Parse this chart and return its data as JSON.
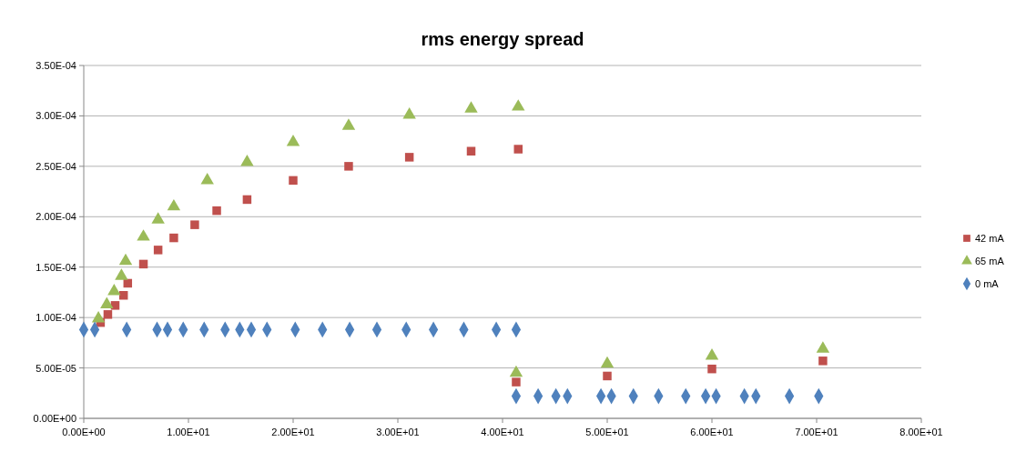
{
  "chart_data": {
    "type": "scatter",
    "title": "rms energy spread",
    "xlim": [
      0,
      80
    ],
    "ylim": [
      0,
      0.00035
    ],
    "xticks": [
      {
        "value": 0,
        "label": "0.00E+00"
      },
      {
        "value": 10,
        "label": "1.00E+01"
      },
      {
        "value": 20,
        "label": "2.00E+01"
      },
      {
        "value": 30,
        "label": "3.00E+01"
      },
      {
        "value": 40,
        "label": "4.00E+01"
      },
      {
        "value": 50,
        "label": "5.00E+01"
      },
      {
        "value": 60,
        "label": "6.00E+01"
      },
      {
        "value": 70,
        "label": "7.00E+01"
      },
      {
        "value": 80,
        "label": "8.00E+01"
      }
    ],
    "yticks": [
      {
        "value": 0,
        "label": "0.00E+00"
      },
      {
        "value": 5e-05,
        "label": "5.00E-05"
      },
      {
        "value": 0.0001,
        "label": "1.00E-04"
      },
      {
        "value": 0.00015,
        "label": "1.50E-04"
      },
      {
        "value": 0.0002,
        "label": "2.00E-04"
      },
      {
        "value": 0.00025,
        "label": "2.50E-04"
      },
      {
        "value": 0.0003,
        "label": "3.00E-04"
      },
      {
        "value": 0.00035,
        "label": "3.50E-04"
      }
    ],
    "grid": "y",
    "legend": "right",
    "series": [
      {
        "name": "42 mA",
        "color": "#c0504d",
        "marker": "square",
        "x": [
          1.6,
          2.3,
          3.0,
          3.8,
          4.2,
          5.7,
          7.1,
          8.6,
          10.6,
          12.7,
          15.6,
          20,
          25.3,
          31.1,
          37,
          41.5,
          41.3,
          50,
          60,
          70.6
        ],
        "values": [
          9.5e-05,
          0.000103,
          0.000112,
          0.000122,
          0.000134,
          0.000153,
          0.000167,
          0.000179,
          0.000192,
          0.000206,
          0.000217,
          0.000236,
          0.00025,
          0.000259,
          0.000265,
          0.000267,
          3.6e-05,
          4.2e-05,
          4.9e-05,
          5.7e-05
        ]
      },
      {
        "name": "65 mA",
        "color": "#9bbb59",
        "marker": "triangle",
        "x": [
          1.4,
          2.2,
          2.9,
          3.6,
          4.0,
          5.7,
          7.1,
          8.6,
          11.8,
          15.6,
          20,
          25.3,
          31.1,
          37,
          41.5,
          41.3,
          50,
          60,
          70.6
        ],
        "values": [
          9.9e-05,
          0.000113,
          0.000126,
          0.000141,
          0.000156,
          0.00018,
          0.000197,
          0.00021,
          0.000236,
          0.000254,
          0.000274,
          0.00029,
          0.000301,
          0.000307,
          0.000309,
          4.5e-05,
          5.4e-05,
          6.2e-05,
          6.9e-05
        ]
      },
      {
        "name": "0 mA",
        "color": "#4f81bd",
        "marker": "diamond",
        "x": [
          0,
          1.05,
          4.1,
          7.0,
          8.0,
          9.5,
          11.5,
          13.5,
          14.9,
          16.0,
          17.5,
          20.2,
          22.8,
          25.4,
          28.0,
          30.8,
          33.4,
          36.3,
          39.4,
          41.3,
          41.3,
          43.4,
          45.1,
          46.2,
          49.4,
          50.4,
          52.5,
          54.9,
          57.5,
          59.4,
          60.4,
          63.1,
          64.2,
          67.4,
          70.2
        ],
        "values": [
          8.8e-05,
          8.8e-05,
          8.8e-05,
          8.8e-05,
          8.8e-05,
          8.8e-05,
          8.8e-05,
          8.8e-05,
          8.8e-05,
          8.8e-05,
          8.8e-05,
          8.8e-05,
          8.8e-05,
          8.8e-05,
          8.8e-05,
          8.8e-05,
          8.8e-05,
          8.8e-05,
          8.8e-05,
          8.8e-05,
          2.2e-05,
          2.2e-05,
          2.2e-05,
          2.2e-05,
          2.2e-05,
          2.2e-05,
          2.2e-05,
          2.2e-05,
          2.2e-05,
          2.2e-05,
          2.2e-05,
          2.2e-05,
          2.2e-05,
          2.2e-05,
          2.2e-05
        ]
      }
    ]
  }
}
